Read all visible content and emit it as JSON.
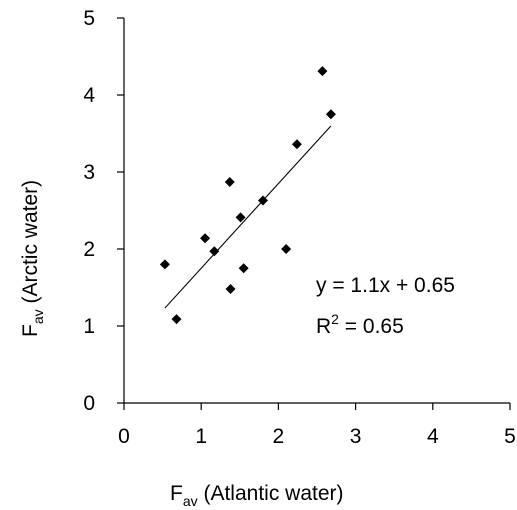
{
  "chart_data": {
    "type": "scatter",
    "title": "",
    "xlabel": {
      "main": "F",
      "sub": "av",
      "rest": " (Atlantic water)"
    },
    "ylabel": {
      "main": "F",
      "sub": "av",
      "rest": " (Arctic water)"
    },
    "xlim": [
      0,
      5
    ],
    "ylim": [
      0,
      5
    ],
    "xticks": [
      "0",
      "1",
      "2",
      "3",
      "4",
      "5"
    ],
    "yticks": [
      "0",
      "1",
      "2",
      "3",
      "4",
      "5"
    ],
    "grid": false,
    "legend": "none",
    "series": [
      {
        "marker": "diamond",
        "color": "#000000",
        "points": [
          {
            "x": 0.53,
            "y": 1.8
          },
          {
            "x": 0.68,
            "y": 1.09
          },
          {
            "x": 1.05,
            "y": 2.14
          },
          {
            "x": 1.17,
            "y": 1.97
          },
          {
            "x": 1.37,
            "y": 2.87
          },
          {
            "x": 1.38,
            "y": 1.48
          },
          {
            "x": 1.51,
            "y": 2.41
          },
          {
            "x": 1.55,
            "y": 1.75
          },
          {
            "x": 1.8,
            "y": 2.63
          },
          {
            "x": 2.1,
            "y": 2.0
          },
          {
            "x": 2.24,
            "y": 3.36
          },
          {
            "x": 2.57,
            "y": 4.31
          },
          {
            "x": 2.68,
            "y": 3.75
          }
        ]
      }
    ],
    "trendline": {
      "slope": 1.1,
      "intercept": 0.65,
      "x_range": [
        0.53,
        2.68
      ],
      "color": "#000000"
    },
    "annotations": {
      "equation": "y = 1.1x + 0.65",
      "r2_prefix": "R",
      "r2_sup": "2",
      "r2_suffix": " = 0.65"
    }
  }
}
